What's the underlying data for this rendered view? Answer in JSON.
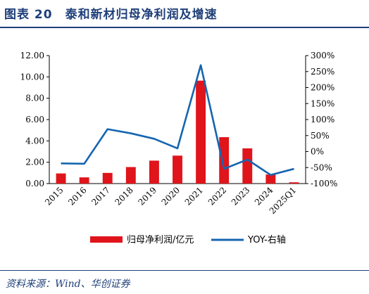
{
  "header": {
    "title": "图表 20　泰和新材归母净利润及增速"
  },
  "footer": {
    "source": "资料来源：Wind、华创证券"
  },
  "colors": {
    "bar": "#e0141b",
    "line": "#1565b0",
    "title": "#1f3f7a"
  },
  "chart_data": {
    "type": "bar",
    "categories": [
      "2015",
      "2016",
      "2017",
      "2018",
      "2019",
      "2020",
      "2021",
      "2022",
      "2023",
      "2024",
      "2025Q1"
    ],
    "series": [
      {
        "name": "归母净利润/亿元",
        "type": "bar",
        "axis": "left",
        "values": [
          0.95,
          0.58,
          1.0,
          1.55,
          2.15,
          2.62,
          9.65,
          4.35,
          3.3,
          0.85,
          0.12
        ]
      },
      {
        "name": "YOY-右轴",
        "type": "line",
        "axis": "right",
        "values": [
          -37,
          -38,
          70,
          57,
          40,
          10,
          270,
          -54,
          -25,
          -73,
          -54
        ]
      }
    ],
    "y_left": {
      "ylim": [
        0,
        12
      ],
      "ticks": [
        "0.00",
        "2.00",
        "4.00",
        "6.00",
        "8.00",
        "10.00",
        "12.00"
      ]
    },
    "y_right": {
      "ylim": [
        -100,
        300
      ],
      "ticks": [
        "-100%",
        "-50%",
        "0%",
        "50%",
        "100%",
        "150%",
        "200%",
        "250%",
        "300%"
      ]
    },
    "legend_position": "bottom",
    "grid": false
  }
}
